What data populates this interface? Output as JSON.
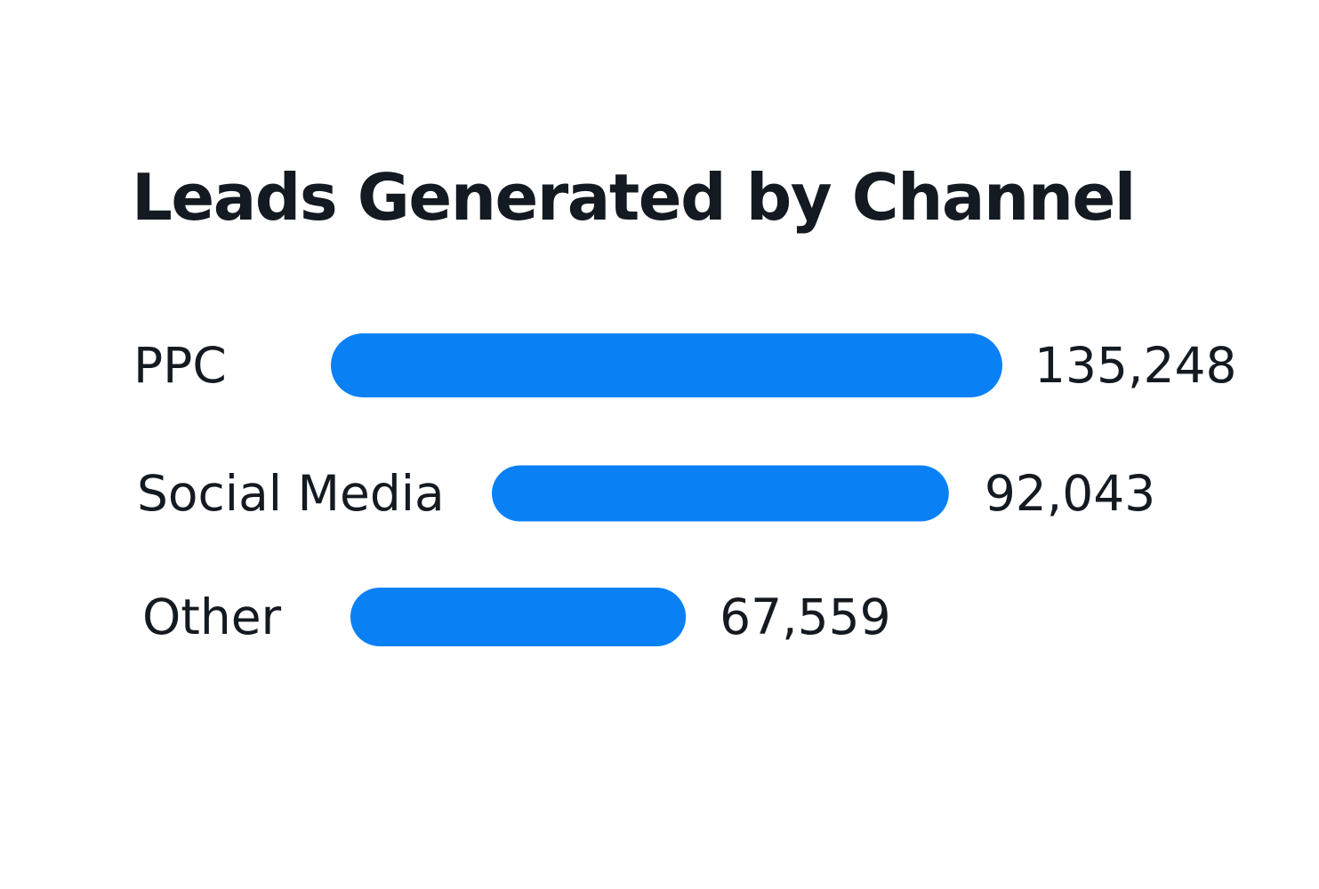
{
  "chart_data": {
    "type": "bar",
    "orientation": "horizontal",
    "title": "Leads Generated by Channel",
    "categories": [
      "PPC",
      "Social Media",
      "Other"
    ],
    "values": [
      135248,
      92043,
      67559
    ],
    "value_labels": [
      "135,248",
      "92,043",
      "67,559"
    ],
    "xlabel": "",
    "ylabel": "",
    "grid": false,
    "legend": "none",
    "colors": {
      "bar": "#0a80f5",
      "text": "#141a21",
      "background": "#ffffff"
    }
  }
}
